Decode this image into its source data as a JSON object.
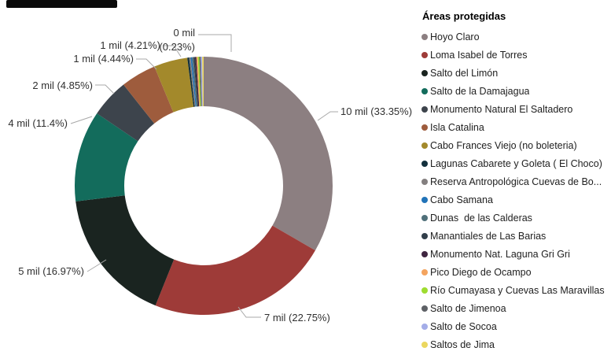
{
  "legend": {
    "title": "Áreas protegidas",
    "items": [
      {
        "label": "Hoyo Claro",
        "color": "#8C7F81"
      },
      {
        "label": "Loma Isabel de Torres",
        "color": "#9E3B38"
      },
      {
        "label": "Salto del Limón",
        "color": "#1A2420"
      },
      {
        "label": "Salto de la Damajagua",
        "color": "#136C5C"
      },
      {
        "label": "Monumento Natural El Saltadero",
        "color": "#3D444C"
      },
      {
        "label": "Isla Catalina",
        "color": "#9E5C3D"
      },
      {
        "label": "Cabo Frances Viejo (no boleteria)",
        "color": "#A3892B"
      },
      {
        "label": "Lagunas Cabarete y Goleta ( El Choco)",
        "color": "#12303C"
      },
      {
        "label": "Reserva Antropológica Cuevas de Bo...",
        "color": "#847F7F"
      },
      {
        "label": "Cabo Samana",
        "color": "#2173B8"
      },
      {
        "label": "Dunas  de las Calderas",
        "color": "#50707A"
      },
      {
        "label": "Manantiales de Las Barias",
        "color": "#323F4A"
      },
      {
        "label": "Monumento Nat. Laguna Gri Gri",
        "color": "#3F2540"
      },
      {
        "label": "Pico Diego de Ocampo",
        "color": "#F4A45F"
      },
      {
        "label": "Río Cumayasa y Cuevas Las Maravillas",
        "color": "#9EDC30"
      },
      {
        "label": "Salto de Jimenoa",
        "color": "#5E6166"
      },
      {
        "label": "Salto de Socoa",
        "color": "#A4ADE8"
      },
      {
        "label": "Saltos de Jima",
        "color": "#EBD75F"
      }
    ]
  },
  "chart_data": {
    "type": "pie",
    "subtype": "donut",
    "title": "Áreas protegidas",
    "unit": "mil (thousands of visitors)",
    "legend_position": "right",
    "start_angle_deg": 0,
    "direction": "clockwise",
    "slices": [
      {
        "name": "Hoyo Claro",
        "value_label": "10 mil",
        "pct": 33.35,
        "color": "#8C7F81",
        "label_lines": [
          "10 mil (33.35%)"
        ]
      },
      {
        "name": "Loma Isabel de Torres",
        "value_label": "7 mil",
        "pct": 22.75,
        "color": "#9E3B38",
        "label_lines": [
          "7 mil (22.75%)"
        ]
      },
      {
        "name": "Salto del Limón",
        "value_label": "5 mil",
        "pct": 16.97,
        "color": "#1A2420",
        "label_lines": [
          "5 mil (16.97%)"
        ]
      },
      {
        "name": "Salto de la Damajagua",
        "value_label": "4 mil",
        "pct": 11.4,
        "color": "#136C5C",
        "label_lines": [
          "4 mil (11.4%)"
        ]
      },
      {
        "name": "Monumento Natural El Saltadero",
        "value_label": "2 mil",
        "pct": 4.85,
        "color": "#3D444C",
        "label_lines": [
          "2 mil (4.85%)"
        ]
      },
      {
        "name": "Isla Catalina",
        "value_label": "1 mil",
        "pct": 4.44,
        "color": "#9E5C3D",
        "label_lines": [
          "1 mil (4.44%)"
        ]
      },
      {
        "name": "Cabo Frances Viejo (no boleteria)",
        "value_label": "1 mil",
        "pct": 4.21,
        "color": "#A3892B",
        "label_lines": [
          "1 mil (4.21%)"
        ]
      },
      {
        "name": "Lagunas Cabarete y Goleta ( El Choco)",
        "value_label": "0 mil",
        "pct": 0.23,
        "color": "#12303C",
        "label_lines": [
          "0 mil",
          "(0.23%)"
        ]
      },
      {
        "name": "Reserva Antropológica Cuevas de Bo...",
        "pct": null,
        "color": "#847F7F"
      },
      {
        "name": "Cabo Samana",
        "pct": null,
        "color": "#2173B8"
      },
      {
        "name": "Dunas  de las Calderas",
        "pct": null,
        "color": "#50707A"
      },
      {
        "name": "Manantiales de Las Barias",
        "pct": null,
        "color": "#323F4A"
      },
      {
        "name": "Monumento Nat. Laguna Gri Gri",
        "pct": null,
        "color": "#3F2540"
      },
      {
        "name": "Pico Diego de Ocampo",
        "pct": null,
        "color": "#F4A45F"
      },
      {
        "name": "Río Cumayasa y Cuevas Las Maravillas",
        "pct": null,
        "color": "#9EDC30"
      },
      {
        "name": "Salto de Jimenoa",
        "pct": null,
        "color": "#5E6166"
      },
      {
        "name": "Salto de Socoa",
        "pct": null,
        "color": "#A4ADE8"
      },
      {
        "name": "Saltos de Jima",
        "pct": null,
        "color": "#EBD75F"
      }
    ]
  }
}
